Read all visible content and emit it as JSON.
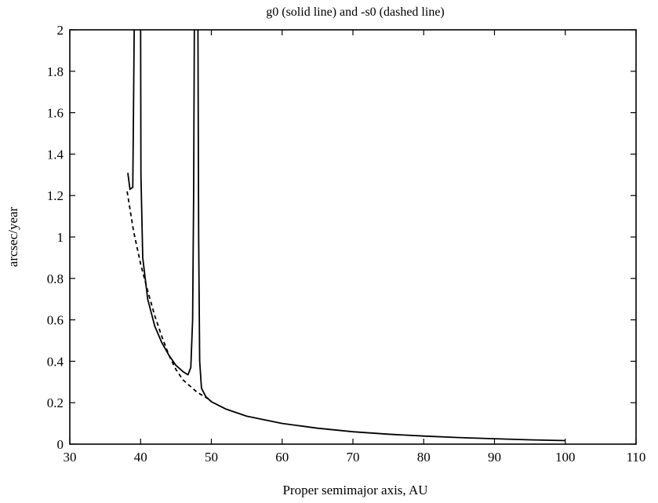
{
  "chart_data": {
    "type": "line",
    "title": "g0 (solid line) and -s0 (dashed line)",
    "xlabel": "Proper semimajor axis, AU",
    "ylabel": "arcsec/year",
    "xlim": [
      30,
      110
    ],
    "ylim": [
      0,
      2
    ],
    "xticks": [
      "30",
      "40",
      "50",
      "60",
      "70",
      "80",
      "90",
      "100",
      "110"
    ],
    "yticks": [
      "0",
      "0.2",
      "0.4",
      "0.6",
      "0.8",
      "1",
      "1.2",
      "1.4",
      "1.6",
      "1.8",
      "2"
    ],
    "grid": false,
    "legend": "none",
    "series": [
      {
        "style": "solid",
        "color": "#000000",
        "segments": [
          [
            [
              38.2,
              1.31
            ],
            [
              38.5,
              1.23
            ],
            [
              38.9,
              1.24
            ],
            [
              39.0,
              1.6
            ],
            [
              39.1,
              2.0
            ]
          ],
          [
            [
              40.0,
              2.0
            ],
            [
              40.05,
              1.3
            ],
            [
              40.3,
              0.9
            ],
            [
              41.0,
              0.7
            ],
            [
              42.0,
              0.57
            ],
            [
              43.0,
              0.49
            ],
            [
              44.0,
              0.43
            ],
            [
              45.0,
              0.38
            ],
            [
              46.0,
              0.35
            ],
            [
              46.7,
              0.335
            ],
            [
              47.1,
              0.37
            ],
            [
              47.35,
              0.6
            ],
            [
              47.5,
              1.2
            ],
            [
              47.6,
              2.0
            ]
          ],
          [
            [
              48.1,
              2.0
            ],
            [
              48.2,
              1.0
            ],
            [
              48.35,
              0.4
            ],
            [
              48.6,
              0.27
            ],
            [
              49.2,
              0.23
            ],
            [
              50.0,
              0.205
            ],
            [
              52.0,
              0.17
            ],
            [
              55.0,
              0.135
            ],
            [
              60.0,
              0.1
            ],
            [
              65.0,
              0.077
            ],
            [
              70.0,
              0.06
            ],
            [
              75.0,
              0.048
            ],
            [
              80.0,
              0.039
            ],
            [
              85.0,
              0.032
            ],
            [
              90.0,
              0.026
            ],
            [
              95.0,
              0.021
            ],
            [
              100.0,
              0.017
            ]
          ]
        ]
      },
      {
        "style": "dashed",
        "color": "#000000",
        "segments": [
          [
            [
              38.1,
              1.22
            ],
            [
              39.0,
              1.03
            ],
            [
              40.0,
              0.87
            ],
            [
              41.0,
              0.74
            ],
            [
              42.0,
              0.62
            ],
            [
              43.0,
              0.52
            ],
            [
              44.0,
              0.43
            ],
            [
              45.0,
              0.36
            ],
            [
              46.0,
              0.31
            ],
            [
              47.0,
              0.28
            ],
            [
              48.0,
              0.25
            ],
            [
              49.0,
              0.23
            ],
            [
              50.0,
              0.21
            ]
          ]
        ]
      }
    ]
  }
}
